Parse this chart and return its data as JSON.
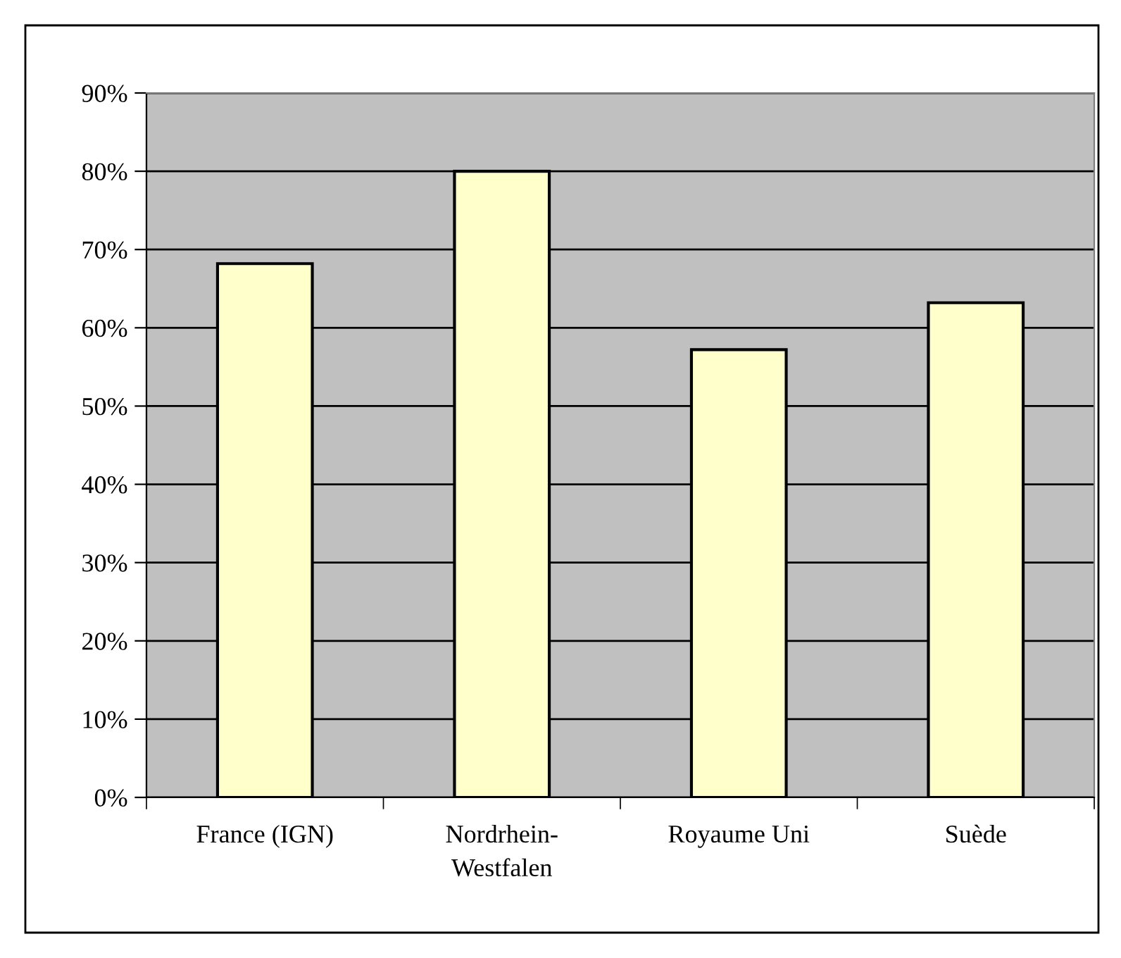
{
  "chart_data": {
    "type": "bar",
    "categories": [
      "France (IGN)",
      "Nordrhein-\nWestfalen",
      "Royaume Uni",
      "Suède"
    ],
    "values": [
      68.2,
      80,
      57.2,
      63.2
    ],
    "color": "#ffffcc",
    "ylim": [
      0,
      90
    ],
    "yticks": [
      {
        "value": 0,
        "label": "0%"
      },
      {
        "value": 10,
        "label": "10%"
      },
      {
        "value": 20,
        "label": "20%"
      },
      {
        "value": 30,
        "label": "30%"
      },
      {
        "value": 40,
        "label": "40%"
      },
      {
        "value": 50,
        "label": "50%"
      },
      {
        "value": 60,
        "label": "60%"
      },
      {
        "value": 70,
        "label": "70%"
      },
      {
        "value": 80,
        "label": "80%"
      },
      {
        "value": 90,
        "label": "90%"
      }
    ],
    "grid": "y"
  }
}
